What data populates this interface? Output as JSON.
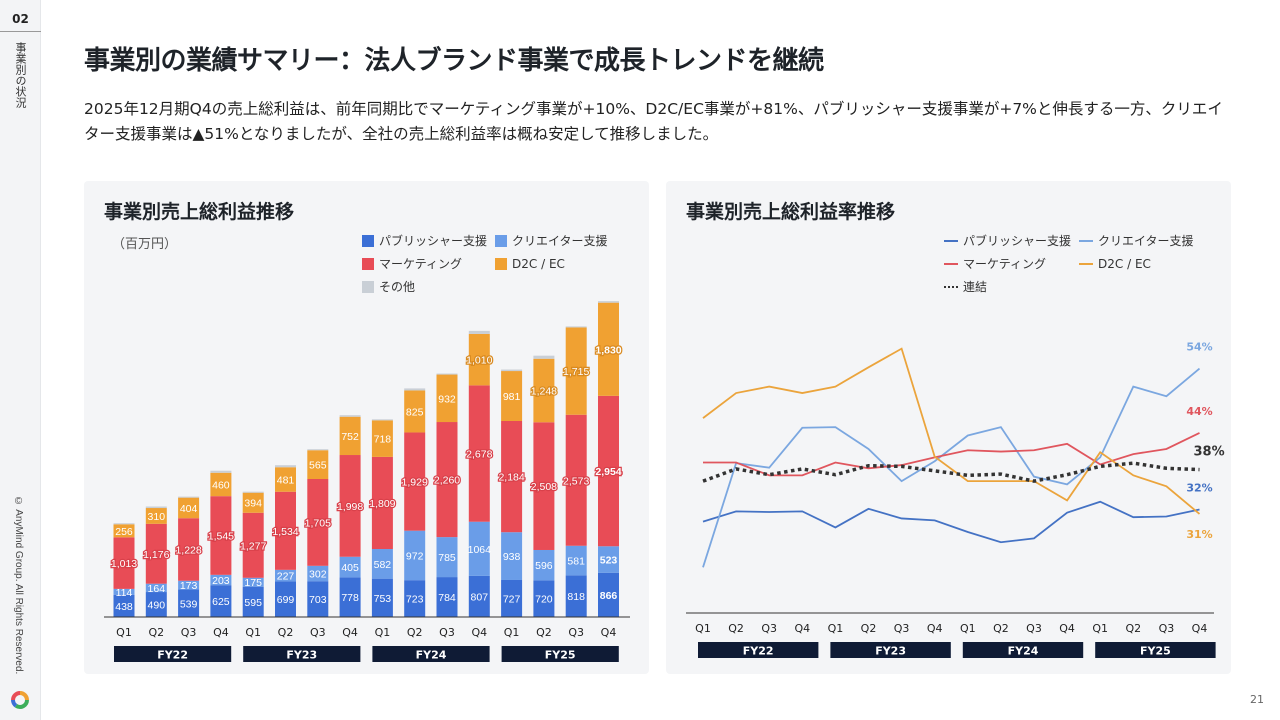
{
  "sidebar": {
    "section_number": "02",
    "section_label": "事業別の状況",
    "copyright": "© AnyMind Group. All Rights Reserved."
  },
  "header": {
    "title": "事業別の業績サマリー：法人ブランド事業で成長トレンドを継続",
    "description": "2025年12月期Q4の売上総利益は、前年同期比でマーケティング事業が+10%、D2C/EC事業が+81%、パブリッシャー支援事業が+7%と伸長する一方、クリエイター支援事業は▲51%となりましたが、全社の売上総利益率は概ね安定して推移しました。"
  },
  "page_number": "21",
  "chart_data": [
    {
      "type": "bar",
      "stacked": true,
      "title": "事業別売上総利益推移",
      "unit": "（百万円）",
      "categories": [
        "Q1",
        "Q2",
        "Q3",
        "Q4",
        "Q1",
        "Q2",
        "Q3",
        "Q4",
        "Q1",
        "Q2",
        "Q3",
        "Q4",
        "Q1",
        "Q2",
        "Q3",
        "Q4"
      ],
      "fiscal_years": [
        "FY22",
        "FY23",
        "FY24",
        "FY25"
      ],
      "ylim": [
        0,
        7600
      ],
      "grid": false,
      "legend_position": "top-right",
      "series": [
        {
          "name": "パブリッシャー支援",
          "color": "#3b6fd6",
          "values": [
            438,
            490,
            539,
            625,
            595,
            699,
            703,
            778,
            753,
            723,
            784,
            807,
            727,
            720,
            818,
            866
          ],
          "labels": [
            "438",
            "490",
            "539",
            "625",
            "595",
            "699",
            "703",
            "778",
            "753",
            "723",
            "784",
            "807",
            "727",
            "720",
            "818",
            "866"
          ]
        },
        {
          "name": "クリエイター支援",
          "color": "#6a9de8",
          "values": [
            114,
            164,
            173,
            203,
            175,
            227,
            302,
            405,
            582,
            972,
            785,
            1064,
            938,
            596,
            581,
            523
          ],
          "labels": [
            "114",
            "164",
            "173",
            "203",
            "175",
            "227",
            "302",
            "405",
            "582",
            "972",
            "785",
            "1064",
            "938",
            "596",
            "581",
            "523"
          ]
        },
        {
          "name": "マーケティング",
          "color": "#e84c56",
          "values": [
            1013,
            1176,
            1228,
            1545,
            1277,
            1534,
            1705,
            1998,
            1809,
            1929,
            2260,
            2678,
            2184,
            2508,
            2573,
            2954
          ],
          "labels": [
            "1,013",
            "1,176",
            "1,228",
            "1,545",
            "1,277",
            "1,534",
            "1,705",
            "1,998",
            "1,809",
            "1,929",
            "2,260",
            "2,678",
            "2,184",
            "2,508",
            "2,573",
            "2,954"
          ]
        },
        {
          "name": "D2C / EC",
          "color": "#f0a132",
          "values": [
            256,
            310,
            404,
            460,
            394,
            481,
            565,
            752,
            718,
            825,
            932,
            1010,
            981,
            1248,
            1715,
            1830
          ],
          "labels": [
            "256",
            "310",
            "404",
            "460",
            "394",
            "481",
            "565",
            "752",
            "718",
            "825",
            "932",
            "1,010",
            "981",
            "1,248",
            "1,715",
            "1,830"
          ]
        },
        {
          "name": "その他",
          "color": "#c9cfd6",
          "values": [
            20,
            30,
            20,
            40,
            20,
            40,
            20,
            30,
            20,
            40,
            20,
            60,
            30,
            60,
            20,
            30
          ]
        }
      ]
    },
    {
      "type": "line",
      "title": "事業別売上総利益率推移",
      "categories": [
        "Q1",
        "Q2",
        "Q3",
        "Q4",
        "Q1",
        "Q2",
        "Q3",
        "Q4",
        "Q1",
        "Q2",
        "Q3",
        "Q4",
        "Q1",
        "Q2",
        "Q3",
        "Q4"
      ],
      "fiscal_years": [
        "FY22",
        "FY23",
        "FY24",
        "FY25"
      ],
      "ylim": [
        16,
        60
      ],
      "grid": false,
      "legend_position": "top-right",
      "series": [
        {
          "name": "パブリッシャー支援",
          "color": "#4472c4",
          "dash": false,
          "values": [
            30.2,
            31.8,
            31.7,
            31.8,
            29.3,
            32.2,
            30.7,
            30.4,
            28.6,
            27.0,
            27.6,
            31.6,
            33.3,
            30.9,
            31.0,
            32.1
          ],
          "end_label": "32%"
        },
        {
          "name": "クリエイター支援",
          "color": "#7ba7e0",
          "dash": false,
          "values": [
            23.1,
            39.3,
            38.6,
            44.8,
            44.9,
            41.5,
            36.5,
            39.6,
            43.6,
            44.9,
            37.2,
            36.0,
            40.2,
            51.2,
            49.7,
            54.0
          ],
          "end_label": "54%"
        },
        {
          "name": "マーケティング",
          "color": "#e0565e",
          "dash": false,
          "values": [
            39.4,
            39.4,
            37.4,
            37.4,
            39.4,
            38.5,
            39.0,
            40.2,
            41.3,
            41.1,
            41.3,
            42.3,
            39.1,
            40.7,
            41.5,
            44.0
          ],
          "end_label": "44%"
        },
        {
          "name": "D2C / EC",
          "color": "#eba43c",
          "dash": false,
          "values": [
            46.3,
            50.2,
            51.2,
            50.2,
            51.2,
            54.2,
            57.1,
            40.3,
            36.5,
            36.5,
            36.5,
            33.5,
            41.0,
            37.4,
            35.7,
            31.4
          ],
          "end_label": "31%"
        },
        {
          "name": "連結",
          "color": "#333333",
          "dash": true,
          "values": [
            36.5,
            38.4,
            37.5,
            38.4,
            37.5,
            38.9,
            38.8,
            38.1,
            37.4,
            37.6,
            36.5,
            37.5,
            38.8,
            39.3,
            38.5,
            38.3
          ],
          "end_label": "38%"
        }
      ]
    }
  ]
}
